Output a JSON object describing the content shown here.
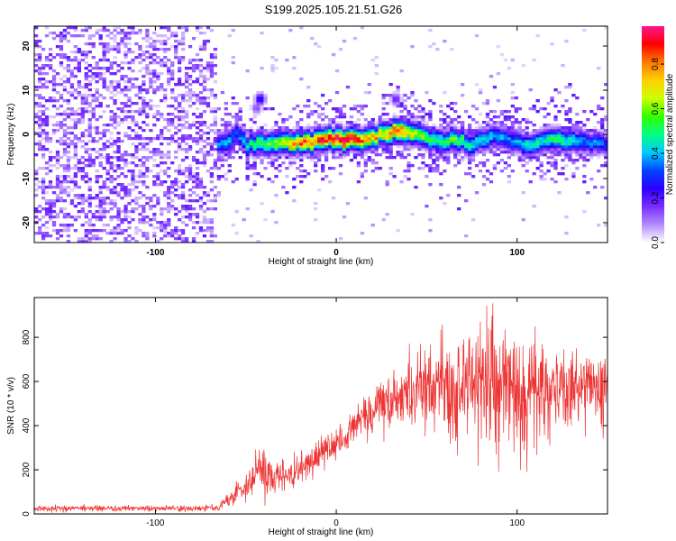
{
  "title": "S199.2025.105.21.51.G26",
  "chart_data": [
    {
      "type": "heatmap",
      "xlabel": "Height of straight line (km)",
      "ylabel": "Frequency (Hz)",
      "xlim": [
        -167,
        150
      ],
      "ylim": [
        -24.5,
        24.5
      ],
      "xticks": [
        -100,
        0,
        100
      ],
      "yticks": [
        -20,
        -10,
        0,
        10,
        20
      ],
      "colorbar": {
        "label": "Normalized spectral amplitude",
        "range": [
          0,
          0.97
        ],
        "ticks": [
          0.0,
          0.2,
          0.4,
          0.6,
          0.8
        ],
        "colormap": [
          "#ffffff",
          "#b38cff",
          "#7a2cff",
          "#2a00ff",
          "#0044ff",
          "#00ccff",
          "#00ff80",
          "#33ff00",
          "#ccff00",
          "#ffd000",
          "#ff7a00",
          "#ff0000",
          "#ff1493"
        ]
      },
      "noise_region": {
        "x_range": [
          -167,
          -66
        ],
        "y_range": [
          -24.5,
          24.5
        ],
        "typical_amplitude": 0.1
      },
      "ridge": {
        "x": [
          -66,
          -60,
          -55,
          -50,
          -45,
          -40,
          -35,
          -30,
          -25,
          -20,
          -15,
          -10,
          -5,
          0,
          5,
          10,
          15,
          20,
          25,
          30,
          35,
          40,
          45,
          50,
          55,
          60,
          65,
          70,
          75,
          80,
          85,
          90,
          95,
          100,
          105,
          110,
          115,
          120,
          125,
          130,
          135,
          140,
          145,
          150
        ],
        "y": [
          -2.5,
          -1.5,
          0.5,
          -2.0,
          -2.5,
          -2.0,
          -2.0,
          -2.0,
          -2.0,
          -2.0,
          -2.0,
          -1.5,
          -0.5,
          -1.0,
          -1.5,
          -1.0,
          -1.0,
          -0.5,
          0.0,
          0.5,
          1.0,
          0.5,
          0.0,
          -0.5,
          -1.5,
          -2.0,
          -1.0,
          -1.5,
          -2.5,
          -1.5,
          -0.5,
          -0.5,
          -1.5,
          -2.0,
          -2.5,
          -2.0,
          -1.5,
          -1.0,
          -1.5,
          -2.0,
          -1.5,
          -2.0,
          -2.0,
          -2.0
        ],
        "amplitude": [
          0.35,
          0.4,
          0.3,
          0.45,
          0.5,
          0.55,
          0.6,
          0.65,
          0.75,
          0.8,
          0.85,
          0.85,
          0.9,
          0.95,
          0.97,
          0.9,
          0.8,
          0.75,
          0.7,
          0.8,
          0.85,
          0.75,
          0.6,
          0.55,
          0.5,
          0.5,
          0.55,
          0.5,
          0.45,
          0.45,
          0.4,
          0.4,
          0.35,
          0.4,
          0.45,
          0.45,
          0.45,
          0.5,
          0.5,
          0.45,
          0.4,
          0.35,
          0.35,
          0.3
        ]
      },
      "isolated_features": [
        {
          "x": -42,
          "y": 8,
          "amplitude": 0.3
        },
        {
          "x": -44,
          "y": 6,
          "amplitude": 0.15
        },
        {
          "x": -35,
          "y": 15,
          "amplitude": 0.05
        },
        {
          "x": 33,
          "y": 8,
          "amplitude": 0.2
        }
      ]
    },
    {
      "type": "line",
      "xlabel": "Height of straight line (km)",
      "ylabel": "SNR (10 * v/v)",
      "xlim": [
        -167,
        150
      ],
      "ylim": [
        0,
        980
      ],
      "xticks": [
        -100,
        0,
        100
      ],
      "yticks": [
        0,
        200,
        400,
        600,
        800
      ],
      "color": "#ee3333",
      "envelope": {
        "x": [
          -167,
          -140,
          -110,
          -80,
          -65,
          -55,
          -50,
          -45,
          -40,
          -35,
          -30,
          -25,
          -20,
          -15,
          -10,
          -5,
          0,
          5,
          10,
          15,
          20,
          25,
          30,
          35,
          40,
          45,
          50,
          55,
          60,
          65,
          70,
          75,
          80,
          85,
          90,
          95,
          100,
          105,
          110,
          115,
          120,
          125,
          130,
          135,
          140,
          145,
          150
        ],
        "mean": [
          25,
          25,
          25,
          25,
          30,
          90,
          140,
          170,
          220,
          160,
          180,
          160,
          200,
          230,
          280,
          290,
          320,
          350,
          400,
          430,
          450,
          500,
          520,
          540,
          540,
          560,
          570,
          560,
          560,
          580,
          580,
          570,
          580,
          600,
          590,
          580,
          570,
          560,
          570,
          560,
          560,
          560,
          570,
          560,
          560,
          560,
          560
        ],
        "spread": [
          12,
          12,
          12,
          12,
          15,
          40,
          60,
          80,
          120,
          80,
          80,
          60,
          60,
          70,
          70,
          70,
          70,
          80,
          90,
          100,
          100,
          120,
          130,
          140,
          150,
          160,
          180,
          200,
          200,
          220,
          230,
          240,
          260,
          260,
          250,
          250,
          240,
          230,
          220,
          200,
          180,
          180,
          180,
          170,
          170,
          160,
          160
        ]
      }
    }
  ]
}
